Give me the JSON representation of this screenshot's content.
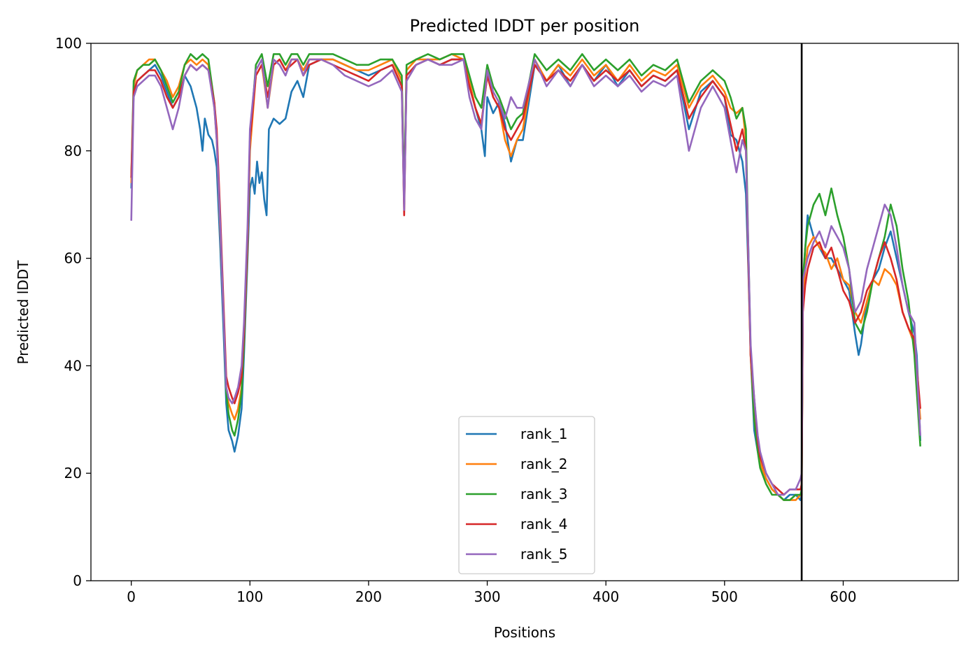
{
  "chart_data": {
    "type": "line",
    "title": "Predicted lDDT per position",
    "xlabel": "Positions",
    "ylabel": "Predicted lDDT",
    "xlim": [
      -34,
      697
    ],
    "ylim": [
      0,
      100
    ],
    "xticks": [
      0,
      100,
      200,
      300,
      400,
      500,
      600
    ],
    "yticks": [
      0,
      20,
      40,
      60,
      80,
      100
    ],
    "grid": false,
    "legend_position": "lower center",
    "vertical_marker_x": 565,
    "series": [
      {
        "name": "rank_1",
        "color": "#1f77b4",
        "x": [
          0,
          2,
          5,
          10,
          15,
          20,
          25,
          30,
          35,
          40,
          45,
          50,
          55,
          58,
          60,
          62,
          65,
          68,
          70,
          72,
          75,
          78,
          80,
          82,
          85,
          87,
          90,
          93,
          95,
          98,
          100,
          102,
          104,
          106,
          108,
          110,
          112,
          114,
          116,
          120,
          125,
          130,
          135,
          140,
          145,
          150,
          160,
          170,
          180,
          190,
          200,
          210,
          220,
          228,
          230,
          232,
          240,
          250,
          260,
          270,
          280,
          285,
          290,
          295,
          298,
          300,
          305,
          310,
          315,
          320,
          325,
          330,
          340,
          350,
          360,
          370,
          380,
          390,
          400,
          410,
          420,
          430,
          440,
          450,
          460,
          470,
          480,
          490,
          500,
          505,
          510,
          515,
          518,
          520,
          522,
          525,
          528,
          530,
          535,
          540,
          545,
          550,
          555,
          560,
          564,
          565,
          566,
          568,
          570,
          575,
          580,
          585,
          590,
          595,
          600,
          605,
          610,
          613,
          615,
          620,
          625,
          630,
          635,
          640,
          645,
          650,
          655,
          660,
          662,
          664,
          665
        ],
        "y": [
          73,
          91,
          93,
          94,
          95,
          96,
          94,
          91,
          88,
          90,
          94,
          92,
          88,
          84,
          80,
          86,
          83,
          82,
          80,
          77,
          62,
          45,
          33,
          28,
          26,
          24,
          27,
          32,
          42,
          60,
          73,
          75,
          72,
          78,
          74,
          76,
          71,
          68,
          84,
          86,
          85,
          86,
          91,
          93,
          90,
          96,
          97,
          97,
          96,
          95,
          94,
          95,
          96,
          92,
          70,
          94,
          96,
          97,
          96,
          97,
          97,
          92,
          88,
          84,
          79,
          90,
          87,
          89,
          85,
          78,
          82,
          82,
          96,
          93,
          96,
          92,
          96,
          93,
          96,
          92,
          95,
          92,
          94,
          93,
          95,
          84,
          91,
          93,
          90,
          83,
          82,
          78,
          72,
          58,
          42,
          28,
          24,
          22,
          19,
          17,
          16,
          15,
          16,
          16,
          15,
          16,
          55,
          62,
          68,
          64,
          62,
          60,
          60,
          58,
          56,
          54,
          46,
          42,
          44,
          52,
          56,
          58,
          62,
          65,
          60,
          55,
          50,
          46,
          42,
          32,
          26
        ]
      },
      {
        "name": "rank_2",
        "color": "#ff7f0e",
        "x": [
          0,
          2,
          5,
          10,
          15,
          20,
          25,
          30,
          35,
          40,
          45,
          50,
          55,
          60,
          65,
          70,
          72,
          75,
          78,
          80,
          82,
          85,
          87,
          90,
          93,
          95,
          98,
          100,
          105,
          110,
          115,
          120,
          125,
          130,
          135,
          140,
          145,
          150,
          160,
          170,
          180,
          190,
          200,
          210,
          220,
          228,
          230,
          232,
          240,
          250,
          260,
          270,
          280,
          285,
          290,
          295,
          300,
          305,
          310,
          315,
          320,
          325,
          330,
          340,
          350,
          360,
          370,
          380,
          390,
          400,
          410,
          420,
          430,
          440,
          450,
          460,
          470,
          480,
          490,
          500,
          505,
          510,
          515,
          518,
          520,
          522,
          525,
          528,
          530,
          535,
          540,
          545,
          550,
          555,
          560,
          564,
          565,
          566,
          568,
          570,
          575,
          580,
          585,
          590,
          595,
          600,
          605,
          610,
          615,
          620,
          625,
          630,
          635,
          640,
          645,
          650,
          655,
          660,
          665
        ],
        "y": [
          74,
          92,
          95,
          96,
          97,
          97,
          95,
          93,
          90,
          92,
          96,
          97,
          96,
          97,
          96,
          88,
          82,
          65,
          48,
          36,
          33,
          31,
          30,
          32,
          36,
          44,
          62,
          80,
          94,
          96,
          88,
          96,
          97,
          95,
          97,
          97,
          95,
          97,
          97,
          97,
          96,
          95,
          95,
          96,
          97,
          93,
          70,
          95,
          97,
          97,
          97,
          98,
          97,
          93,
          88,
          85,
          94,
          90,
          88,
          82,
          79,
          82,
          84,
          97,
          93,
          96,
          94,
          97,
          94,
          96,
          93,
          96,
          93,
          95,
          94,
          96,
          88,
          92,
          94,
          91,
          88,
          87,
          88,
          82,
          60,
          42,
          30,
          25,
          22,
          19,
          17,
          16,
          15,
          15,
          15,
          16,
          16,
          52,
          58,
          62,
          64,
          62,
          61,
          58,
          60,
          56,
          55,
          50,
          48,
          52,
          56,
          55,
          58,
          57,
          55,
          50,
          47,
          44,
          30
        ]
      },
      {
        "name": "rank_3",
        "color": "#2ca02c",
        "x": [
          0,
          2,
          5,
          10,
          15,
          20,
          25,
          30,
          35,
          40,
          45,
          50,
          55,
          60,
          65,
          70,
          72,
          75,
          78,
          80,
          82,
          85,
          87,
          90,
          93,
          95,
          98,
          100,
          105,
          110,
          115,
          120,
          125,
          130,
          135,
          140,
          145,
          150,
          160,
          170,
          180,
          190,
          200,
          210,
          220,
          228,
          230,
          232,
          240,
          250,
          260,
          270,
          280,
          285,
          290,
          295,
          300,
          305,
          310,
          315,
          320,
          325,
          330,
          340,
          350,
          360,
          370,
          380,
          390,
          400,
          410,
          420,
          430,
          440,
          450,
          460,
          470,
          480,
          490,
          500,
          505,
          510,
          515,
          518,
          520,
          522,
          525,
          528,
          530,
          535,
          540,
          545,
          550,
          555,
          560,
          564,
          565,
          566,
          568,
          570,
          575,
          580,
          585,
          590,
          595,
          600,
          605,
          610,
          615,
          620,
          625,
          630,
          635,
          640,
          645,
          650,
          655,
          660,
          665
        ],
        "y": [
          75,
          93,
          95,
          96,
          96,
          97,
          95,
          92,
          89,
          91,
          96,
          98,
          97,
          98,
          97,
          89,
          83,
          66,
          48,
          35,
          31,
          28,
          27,
          30,
          35,
          44,
          63,
          82,
          96,
          98,
          92,
          98,
          98,
          96,
          98,
          98,
          96,
          98,
          98,
          98,
          97,
          96,
          96,
          97,
          97,
          94,
          72,
          96,
          97,
          98,
          97,
          98,
          98,
          94,
          90,
          88,
          96,
          92,
          90,
          87,
          84,
          86,
          87,
          98,
          95,
          97,
          95,
          98,
          95,
          97,
          95,
          97,
          94,
          96,
          95,
          97,
          89,
          93,
          95,
          93,
          90,
          86,
          88,
          84,
          62,
          43,
          30,
          24,
          21,
          18,
          16,
          16,
          15,
          15,
          16,
          16,
          17,
          56,
          62,
          66,
          70,
          72,
          68,
          73,
          68,
          64,
          58,
          48,
          46,
          50,
          56,
          60,
          64,
          70,
          66,
          58,
          52,
          42,
          25
        ]
      },
      {
        "name": "rank_4",
        "color": "#d62728",
        "x": [
          0,
          2,
          5,
          10,
          15,
          20,
          25,
          30,
          35,
          40,
          45,
          50,
          55,
          60,
          65,
          70,
          72,
          75,
          78,
          80,
          82,
          85,
          87,
          90,
          93,
          95,
          98,
          100,
          105,
          110,
          115,
          120,
          125,
          130,
          135,
          140,
          145,
          150,
          160,
          170,
          180,
          190,
          200,
          210,
          220,
          228,
          230,
          232,
          240,
          250,
          260,
          270,
          280,
          285,
          290,
          295,
          300,
          305,
          310,
          315,
          320,
          325,
          330,
          340,
          350,
          360,
          370,
          380,
          390,
          400,
          410,
          420,
          430,
          440,
          450,
          460,
          470,
          480,
          490,
          500,
          505,
          510,
          515,
          518,
          520,
          522,
          525,
          528,
          530,
          535,
          540,
          545,
          550,
          555,
          560,
          564,
          565,
          566,
          568,
          570,
          575,
          580,
          585,
          590,
          595,
          600,
          605,
          610,
          615,
          620,
          625,
          630,
          635,
          640,
          645,
          650,
          655,
          660,
          665
        ],
        "y": [
          75,
          91,
          93,
          94,
          95,
          95,
          93,
          90,
          88,
          90,
          94,
          96,
          95,
          96,
          95,
          89,
          84,
          68,
          50,
          38,
          36,
          34,
          33,
          35,
          38,
          46,
          64,
          82,
          94,
          96,
          90,
          96,
          97,
          95,
          96,
          97,
          94,
          96,
          97,
          96,
          95,
          94,
          93,
          95,
          96,
          92,
          68,
          94,
          96,
          97,
          96,
          97,
          97,
          92,
          88,
          85,
          94,
          90,
          88,
          84,
          82,
          84,
          86,
          96,
          93,
          95,
          93,
          96,
          93,
          95,
          93,
          95,
          92,
          94,
          93,
          95,
          86,
          90,
          93,
          90,
          85,
          80,
          84,
          80,
          60,
          42,
          34,
          26,
          23,
          20,
          18,
          17,
          16,
          17,
          17,
          17,
          18,
          50,
          55,
          58,
          62,
          63,
          60,
          62,
          58,
          54,
          52,
          48,
          50,
          54,
          56,
          60,
          63,
          60,
          56,
          50,
          47,
          45,
          32
        ]
      },
      {
        "name": "rank_5",
        "color": "#9467bd",
        "x": [
          0,
          2,
          5,
          10,
          15,
          20,
          25,
          30,
          35,
          40,
          45,
          50,
          55,
          60,
          65,
          70,
          72,
          75,
          78,
          80,
          82,
          85,
          87,
          90,
          93,
          95,
          98,
          100,
          105,
          110,
          115,
          120,
          125,
          130,
          135,
          140,
          145,
          150,
          160,
          170,
          180,
          190,
          200,
          210,
          220,
          228,
          230,
          232,
          240,
          250,
          260,
          270,
          280,
          285,
          290,
          295,
          300,
          305,
          310,
          315,
          320,
          325,
          330,
          340,
          350,
          360,
          370,
          380,
          390,
          400,
          410,
          420,
          430,
          440,
          450,
          460,
          470,
          480,
          490,
          500,
          505,
          510,
          515,
          518,
          520,
          522,
          525,
          528,
          530,
          535,
          540,
          545,
          550,
          555,
          560,
          564,
          565,
          566,
          568,
          570,
          575,
          580,
          585,
          590,
          595,
          600,
          605,
          610,
          615,
          620,
          625,
          630,
          635,
          640,
          645,
          650,
          655,
          660,
          665
        ],
        "y": [
          67,
          90,
          92,
          93,
          94,
          94,
          92,
          88,
          84,
          88,
          94,
          96,
          95,
          96,
          95,
          88,
          82,
          66,
          48,
          36,
          34,
          33,
          34,
          36,
          40,
          48,
          66,
          84,
          95,
          97,
          88,
          97,
          96,
          94,
          97,
          97,
          94,
          97,
          97,
          96,
          94,
          93,
          92,
          93,
          95,
          91,
          69,
          93,
          96,
          97,
          96,
          96,
          97,
          90,
          86,
          84,
          95,
          91,
          89,
          86,
          90,
          88,
          88,
          97,
          92,
          95,
          92,
          96,
          92,
          94,
          92,
          94,
          91,
          93,
          92,
          94,
          80,
          88,
          92,
          88,
          82,
          76,
          82,
          80,
          62,
          44,
          34,
          27,
          24,
          20,
          18,
          16,
          16,
          17,
          17,
          19,
          20,
          56,
          58,
          60,
          63,
          65,
          62,
          66,
          64,
          62,
          58,
          50,
          52,
          58,
          62,
          66,
          70,
          68,
          62,
          55,
          50,
          48,
          27
        ]
      }
    ]
  }
}
